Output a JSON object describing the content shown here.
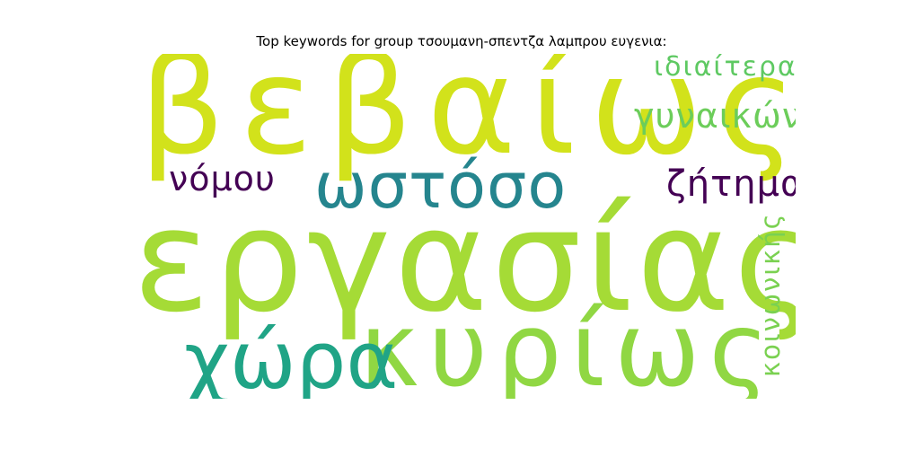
{
  "figure": {
    "title": "Top keywords for group τσουμανη-σπεντζα λαμπρου ευγενια:"
  },
  "wordcloud": {
    "words": [
      {
        "text": "βεβαίως",
        "color": "#d2e21b"
      },
      {
        "text": "εργασίας",
        "color": "#a5db36"
      },
      {
        "text": "κυρίως",
        "color": "#90d743"
      },
      {
        "text": "ωστόσο",
        "color": "#25858e"
      },
      {
        "text": "χώρα",
        "color": "#20a486"
      },
      {
        "text": "νόμου",
        "color": "#440154"
      },
      {
        "text": "ζήτημα",
        "color": "#440154"
      },
      {
        "text": "ιδιαίτερα",
        "color": "#5ec962"
      },
      {
        "text": "γυναικών",
        "color": "#6ccd5a"
      },
      {
        "text": "κοινωνικής",
        "color": "#7ad151"
      }
    ]
  }
}
